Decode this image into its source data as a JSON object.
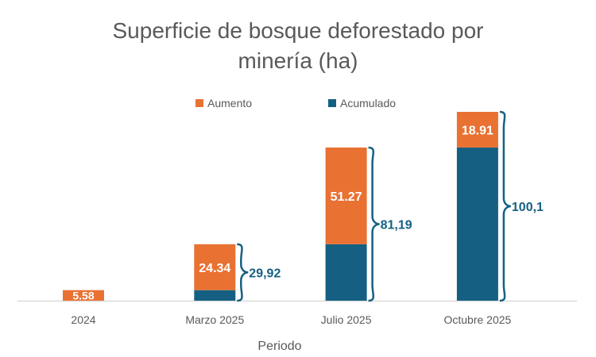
{
  "chart_data": {
    "type": "bar",
    "stacked": true,
    "title": "Superficie de bosque deforestado por minería (ha)",
    "title_lines": [
      "Superficie de bosque deforestado por",
      "minería (ha)"
    ],
    "xlabel": "Periodo",
    "ylabel": "",
    "categories": [
      "2024",
      "Marzo 2025",
      "Julio 2025",
      "Octubre 2025"
    ],
    "series": [
      {
        "name": "Acumulado",
        "color": "#156082",
        "values": [
          0,
          5.58,
          29.92,
          81.19
        ]
      },
      {
        "name": "Aumento",
        "color": "#E97132",
        "values": [
          5.58,
          24.34,
          51.27,
          18.91
        ],
        "labels": [
          "5.58",
          "24.34",
          "51.27",
          "18.91"
        ]
      }
    ],
    "legend_order": [
      "Aumento",
      "Acumulado"
    ],
    "legend_position": "top",
    "totals": [
      null,
      "29,92",
      "81,19",
      "100,1"
    ],
    "ylim": [
      0,
      100.1
    ],
    "grid": false
  }
}
